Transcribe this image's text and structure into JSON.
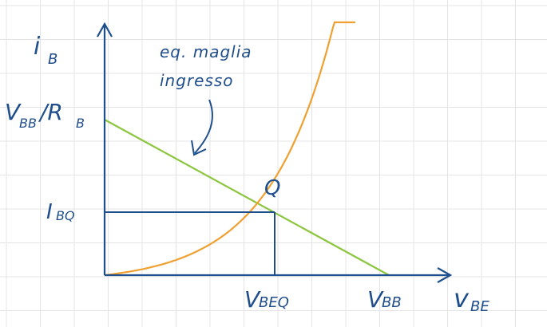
{
  "labels": {
    "y_axis": "i",
    "y_axis_sub": "B",
    "x_axis": "v",
    "x_axis_sub": "BE",
    "vbb_over_rb": "V",
    "vbb_over_rb_sub1": "BB",
    "vbb_over_rb_mid": "/R",
    "vbb_over_rb_sub2": "B",
    "ibq": "I",
    "ibq_sub": "BQ",
    "q_point": "Q",
    "vbeq": "V",
    "vbeq_sub": "BEQ",
    "vbb": "V",
    "vbb_sub": "BB",
    "note_line1": "eq. maglia",
    "note_line2": "ingresso"
  },
  "colors": {
    "grid": "#e4e4e4",
    "ink": "#1f4e8c",
    "load_line": "#8cc63f",
    "diode_curve": "#f0a030"
  }
}
